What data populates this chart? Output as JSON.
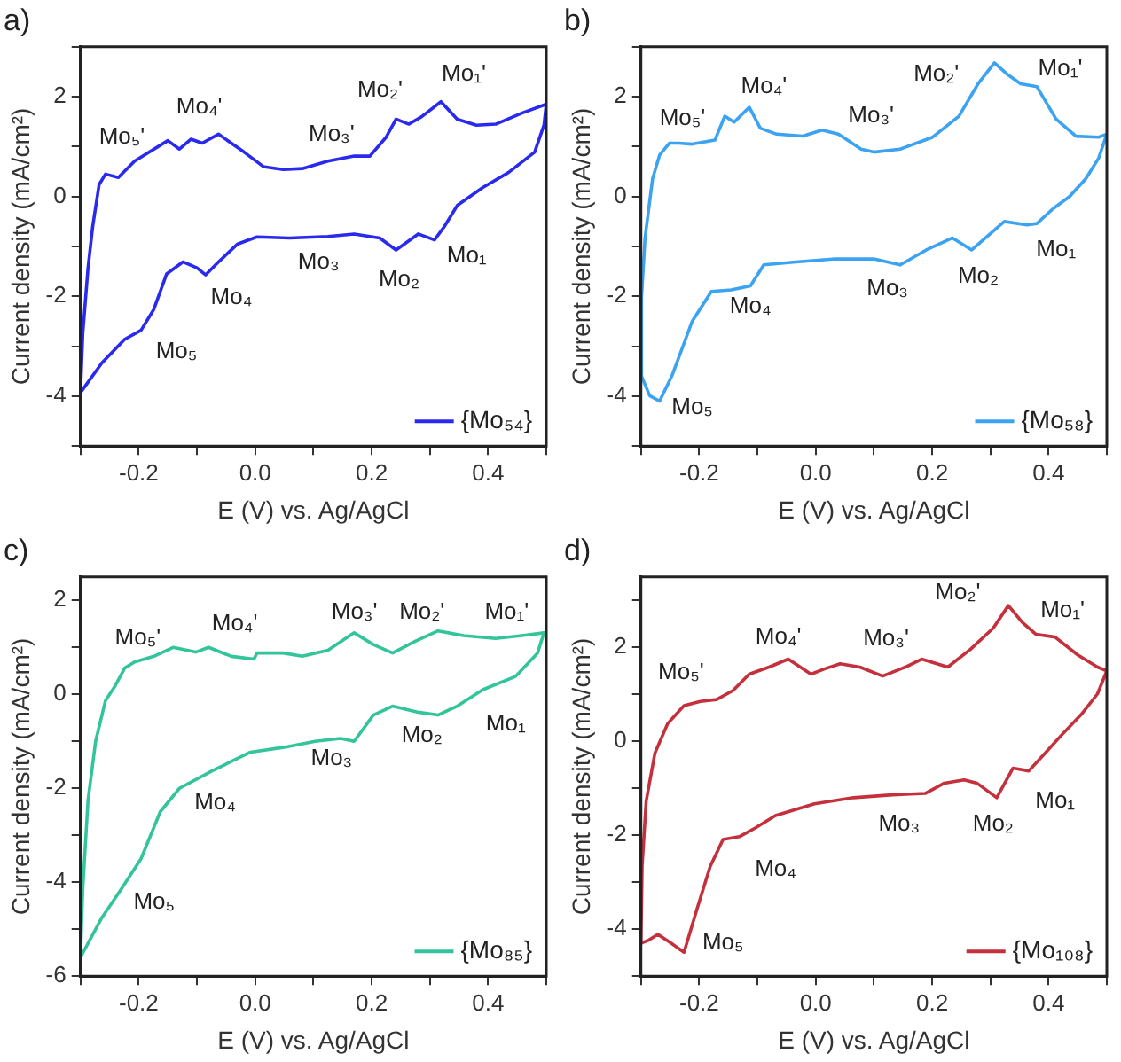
{
  "chart_data": [
    {
      "type": "line",
      "title": "a)",
      "xlabel": "E (V) vs. Ag/AgCl",
      "ylabel": "Current density (mA/cm²)",
      "xlim": [
        -0.3,
        0.5
      ],
      "xticks": [
        {
          "value": -0.3,
          "label": null
        },
        -0.2,
        {
          "value": -0.1,
          "label": null
        },
        {
          "value": 0,
          "label": "0.0"
        },
        {
          "value": 0.1,
          "label": null
        },
        0.2,
        {
          "value": 0.3,
          "label": null
        },
        0.4,
        {
          "value": 0.5,
          "label": null
        }
      ],
      "ylim": [
        -5,
        3
      ],
      "yticks": [
        {
          "value": -5,
          "label": null
        },
        -4,
        {
          "value": -3,
          "label": null
        },
        -2,
        {
          "value": -1,
          "label": null
        },
        0,
        {
          "value": 1,
          "label": null
        },
        2,
        {
          "value": 3,
          "label": null
        }
      ],
      "grid": false,
      "legend": "bottom right",
      "series": [
        {
          "name": "{Mo₅₄}",
          "color": "#2a2aee",
          "x": [
            -0.3,
            -0.296,
            -0.287,
            -0.279,
            -0.268,
            -0.257,
            -0.235,
            -0.207,
            -0.15,
            -0.13,
            -0.11,
            -0.091,
            -0.063,
            -0.019,
            0.014,
            0.048,
            0.081,
            0.125,
            0.17,
            0.197,
            0.225,
            0.242,
            0.264,
            0.286,
            0.319,
            0.347,
            0.38,
            0.413,
            0.458,
            0.5
          ],
          "values": [
            -3.93,
            -2.74,
            -1.43,
            -0.6,
            0.24,
            0.45,
            0.38,
            0.71,
            1.12,
            0.95,
            1.15,
            1.07,
            1.25,
            0.89,
            0.6,
            0.54,
            0.56,
            0.71,
            0.81,
            0.81,
            1.19,
            1.55,
            1.45,
            1.6,
            1.9,
            1.55,
            1.43,
            1.45,
            1.67,
            1.85
          ]
        },
        {
          "color": "#2a2aee",
          "x": [
            -0.3,
            -0.263,
            -0.224,
            -0.196,
            -0.174,
            -0.152,
            -0.124,
            -0.1,
            -0.085,
            -0.063,
            -0.03,
            0.003,
            0.059,
            0.125,
            0.17,
            0.214,
            0.242,
            0.28,
            0.308,
            0.325,
            0.347,
            0.391,
            0.435,
            0.48,
            0.496,
            0.5
          ],
          "values": [
            -3.93,
            -3.33,
            -2.86,
            -2.68,
            -2.26,
            -1.55,
            -1.31,
            -1.43,
            -1.57,
            -1.31,
            -0.95,
            -0.81,
            -0.83,
            -0.8,
            -0.75,
            -0.83,
            -1.07,
            -0.75,
            -0.87,
            -0.6,
            -0.18,
            0.18,
            0.48,
            0.89,
            1.43,
            1.85
          ]
        }
      ],
      "annotations": [
        "Mo₅'",
        "Mo₄'",
        "Mo₃'",
        "Mo₂'",
        "Mo₁'",
        "Mo₁",
        "Mo₂",
        "Mo₃",
        "Mo₄",
        "Mo₅"
      ]
    },
    {
      "type": "line",
      "title": "b)",
      "xlabel": "E (V) vs. Ag/AgCl",
      "ylabel": "Current density (mA/cm²)",
      "xlim": [
        -0.3,
        0.5
      ],
      "xticks": [
        {
          "value": -0.3,
          "label": null
        },
        -0.2,
        {
          "value": -0.1,
          "label": null
        },
        {
          "value": 0,
          "label": "0.0"
        },
        {
          "value": 0.1,
          "label": null
        },
        0.2,
        {
          "value": 0.3,
          "label": null
        },
        0.4,
        {
          "value": 0.5,
          "label": null
        }
      ],
      "ylim": [
        -5,
        3
      ],
      "yticks": [
        {
          "value": -5,
          "label": null
        },
        -4,
        {
          "value": -3,
          "label": null
        },
        -2,
        {
          "value": -1,
          "label": null
        },
        0,
        {
          "value": 1,
          "label": null
        },
        2,
        {
          "value": 3,
          "label": null
        }
      ],
      "grid": false,
      "legend": "bottom right",
      "series": [
        {
          "name": "{Mo₅₈}",
          "color": "#3ca2f2",
          "x": [
            -0.3,
            -0.299,
            -0.293,
            -0.28,
            -0.268,
            -0.251,
            -0.235,
            -0.212,
            -0.173,
            -0.156,
            -0.14,
            -0.114,
            -0.095,
            -0.067,
            -0.022,
            0.011,
            0.039,
            0.078,
            0.1,
            0.145,
            0.201,
            0.246,
            0.279,
            0.307,
            0.33,
            0.352,
            0.38,
            0.413,
            0.447,
            0.486,
            0.5
          ],
          "values": [
            -3.57,
            -2.02,
            -0.83,
            0.36,
            0.83,
            1.07,
            1.07,
            1.05,
            1.13,
            1.61,
            1.49,
            1.79,
            1.37,
            1.25,
            1.21,
            1.33,
            1.25,
            0.95,
            0.89,
            0.95,
            1.19,
            1.61,
            2.26,
            2.68,
            2.44,
            2.26,
            2.2,
            1.55,
            1.21,
            1.19,
            1.25
          ]
        },
        {
          "color": "#3ca2f2",
          "x": [
            -0.3,
            -0.285,
            -0.268,
            -0.246,
            -0.212,
            -0.179,
            -0.145,
            -0.112,
            -0.089,
            -0.034,
            0.034,
            0.1,
            0.145,
            0.19,
            0.235,
            0.268,
            0.324,
            0.363,
            0.38,
            0.408,
            0.436,
            0.464,
            0.486,
            0.5
          ],
          "values": [
            -3.57,
            -3.99,
            -4.1,
            -3.57,
            -2.5,
            -1.9,
            -1.87,
            -1.79,
            -1.37,
            -1.31,
            -1.25,
            -1.25,
            -1.37,
            -1.07,
            -0.83,
            -1.07,
            -0.5,
            -0.57,
            -0.54,
            -0.24,
            0,
            0.36,
            0.77,
            1.25
          ]
        }
      ],
      "annotations": [
        "Mo₅'",
        "Mo₄'",
        "Mo₃'",
        "Mo₂'",
        "Mo₁'",
        "Mo₁",
        "Mo₂",
        "Mo₃",
        "Mo₄",
        "Mo₅"
      ]
    },
    {
      "type": "line",
      "title": "c)",
      "xlabel": "E (V) vs. Ag/AgCl",
      "ylabel": "Current density (mA/cm²)",
      "xlim": [
        -0.3,
        0.5
      ],
      "xticks": [
        {
          "value": -0.3,
          "label": null
        },
        -0.2,
        {
          "value": -0.1,
          "label": null
        },
        {
          "value": 0,
          "label": "0.0"
        },
        {
          "value": 0.1,
          "label": null
        },
        0.2,
        {
          "value": 0.3,
          "label": null
        },
        0.4,
        {
          "value": 0.5,
          "label": null
        }
      ],
      "ylim": [
        -6,
        2.5
      ],
      "yticks": [
        -6,
        {
          "value": -5,
          "label": null
        },
        -4,
        {
          "value": -3,
          "label": null
        },
        -2,
        {
          "value": -1,
          "label": null
        },
        0,
        {
          "value": 1,
          "label": null
        },
        2
      ],
      "grid": false,
      "legend": "bottom right",
      "series": [
        {
          "name": "{Mo₈₅}",
          "color": "#34c49c",
          "x": [
            -0.3,
            -0.296,
            -0.287,
            -0.274,
            -0.257,
            -0.24,
            -0.224,
            -0.207,
            -0.174,
            -0.141,
            -0.102,
            -0.08,
            -0.041,
            -0.002,
            0.003,
            0.048,
            0.081,
            0.125,
            0.17,
            0.203,
            0.236,
            0.275,
            0.314,
            0.358,
            0.413,
            0.458,
            0.496
          ],
          "values": [
            -5.6,
            -4.13,
            -2.25,
            -1.0,
            -0.13,
            0.19,
            0.56,
            0.69,
            0.81,
            1.0,
            0.9,
            1.0,
            0.81,
            0.75,
            0.88,
            0.88,
            0.81,
            0.94,
            1.31,
            1.06,
            0.88,
            1.13,
            1.35,
            1.25,
            1.19,
            1.25,
            1.31
          ]
        },
        {
          "color": "#34c49c",
          "x": [
            -0.3,
            -0.263,
            -0.229,
            -0.196,
            -0.163,
            -0.13,
            -0.074,
            -0.008,
            0.048,
            0.103,
            0.147,
            0.17,
            0.203,
            0.236,
            0.28,
            0.314,
            0.347,
            0.391,
            0.447,
            0.485,
            0.496
          ],
          "values": [
            -5.6,
            -4.75,
            -4.13,
            -3.5,
            -2.5,
            -2.0,
            -1.63,
            -1.23,
            -1.13,
            -1.0,
            -0.94,
            -1.0,
            -0.44,
            -0.25,
            -0.38,
            -0.44,
            -0.25,
            0.1,
            0.38,
            0.88,
            1.31
          ]
        }
      ],
      "annotations": [
        "Mo₅'",
        "Mo₄'",
        "Mo₃'",
        "Mo₂'",
        "Mo₁'",
        "Mo₁",
        "Mo₂",
        "Mo₃",
        "Mo₄",
        "Mo₅"
      ]
    },
    {
      "type": "line",
      "title": "d)",
      "xlabel": "E (V) vs. Ag/AgCl",
      "ylabel": "Current density (mA/cm²)",
      "xlim": [
        -0.3,
        0.5
      ],
      "xticks": [
        {
          "value": -0.3,
          "label": null
        },
        -0.2,
        {
          "value": -0.1,
          "label": null
        },
        {
          "value": 0,
          "label": "0.0"
        },
        {
          "value": 0.1,
          "label": null
        },
        0.2,
        {
          "value": 0.3,
          "label": null
        },
        0.4,
        {
          "value": 0.5,
          "label": null
        }
      ],
      "ylim": [
        -5,
        3.5
      ],
      "yticks": [
        {
          "value": -5,
          "label": null
        },
        -4,
        {
          "value": -3,
          "label": null
        },
        -2,
        {
          "value": -1,
          "label": null
        },
        0,
        {
          "value": 1,
          "label": null
        },
        2,
        {
          "value": 3,
          "label": null
        }
      ],
      "grid": false,
      "legend": "bottom right",
      "series": [
        {
          "name": "{Mo₁₀₈}",
          "color": "#c4303c",
          "x": [
            -0.3,
            -0.298,
            -0.291,
            -0.276,
            -0.254,
            -0.226,
            -0.198,
            -0.17,
            -0.142,
            -0.114,
            -0.08,
            -0.047,
            -0.008,
            0.015,
            0.042,
            0.076,
            0.115,
            0.154,
            0.182,
            0.227,
            0.266,
            0.305,
            0.331,
            0.355,
            0.378,
            0.411,
            0.45,
            0.484,
            0.5
          ],
          "values": [
            -4.3,
            -2.66,
            -1.27,
            -0.25,
            0.38,
            0.76,
            0.85,
            0.89,
            1.08,
            1.43,
            1.58,
            1.75,
            1.43,
            1.54,
            1.65,
            1.58,
            1.39,
            1.58,
            1.75,
            1.58,
            1.96,
            2.41,
            2.89,
            2.53,
            2.28,
            2.22,
            1.84,
            1.58,
            1.5
          ]
        },
        {
          "color": "#c4303c",
          "x": [
            -0.3,
            -0.288,
            -0.271,
            -0.248,
            -0.226,
            -0.203,
            -0.181,
            -0.159,
            -0.131,
            -0.103,
            -0.069,
            -0.002,
            0.065,
            0.132,
            0.188,
            0.221,
            0.255,
            0.277,
            0.311,
            0.339,
            0.366,
            0.389,
            0.422,
            0.456,
            0.484,
            0.5
          ],
          "values": [
            -4.3,
            -4.24,
            -4.11,
            -4.3,
            -4.49,
            -3.54,
            -2.66,
            -2.09,
            -2.03,
            -1.84,
            -1.58,
            -1.33,
            -1.2,
            -1.14,
            -1.11,
            -0.89,
            -0.82,
            -0.89,
            -1.2,
            -0.57,
            -0.63,
            -0.32,
            0.13,
            0.57,
            1.01,
            1.5
          ]
        }
      ],
      "annotations": [
        "Mo₅'",
        "Mo₄'",
        "Mo₃'",
        "Mo₂'",
        "Mo₁'",
        "Mo₁",
        "Mo₂",
        "Mo₃",
        "Mo₄",
        "Mo₅"
      ]
    }
  ]
}
